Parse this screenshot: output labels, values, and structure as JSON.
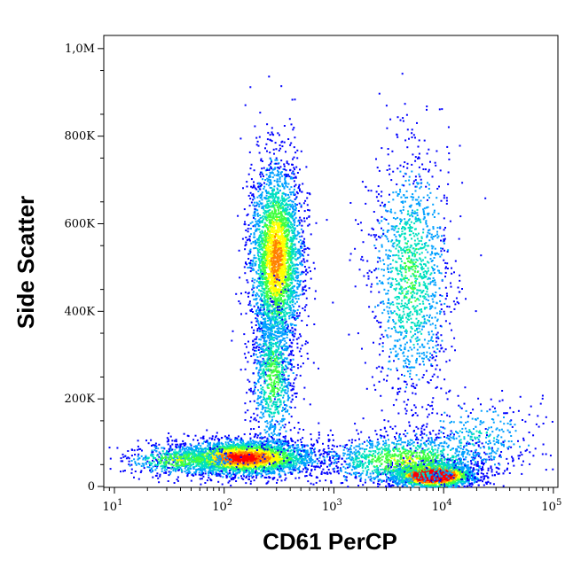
{
  "chart_data": {
    "type": "scatter",
    "plot_style": "density",
    "xlabel": "CD61 PerCP",
    "ylabel": "Side Scatter",
    "x_scale": "log",
    "xlim": [
      8,
      110000
    ],
    "ylim": [
      -2000,
      1030000
    ],
    "x_ticks": [
      {
        "value": 10,
        "base": "10",
        "exp": "1"
      },
      {
        "value": 100,
        "base": "10",
        "exp": "2"
      },
      {
        "value": 1000,
        "base": "10",
        "exp": "3"
      },
      {
        "value": 10000,
        "base": "10",
        "exp": "4"
      },
      {
        "value": 100000,
        "base": "10",
        "exp": "5"
      }
    ],
    "y_ticks": [
      {
        "value": 0,
        "label": "0"
      },
      {
        "value": 200000,
        "label": "200K"
      },
      {
        "value": 400000,
        "label": "400K"
      },
      {
        "value": 600000,
        "label": "600K"
      },
      {
        "value": 800000,
        "label": "800K"
      },
      {
        "value": 1000000,
        "label": "1,0M"
      }
    ],
    "populations": [
      {
        "x_center": 150,
        "x_log_spread": 0.33,
        "y_center": 65000,
        "y_spread": 20000,
        "n": 3200,
        "weight": 1.0
      },
      {
        "x_center": 40,
        "x_log_spread": 0.25,
        "y_center": 60000,
        "y_spread": 18000,
        "n": 500,
        "weight": 0.6
      },
      {
        "x_center": 300,
        "x_log_spread": 0.12,
        "y_center": 520000,
        "y_spread": 110000,
        "n": 3200,
        "weight": 0.8
      },
      {
        "x_center": 280,
        "x_log_spread": 0.1,
        "y_center": 250000,
        "y_spread": 90000,
        "n": 900,
        "weight": 0.5
      },
      {
        "x_center": 5000,
        "x_log_spread": 0.18,
        "y_center": 480000,
        "y_spread": 140000,
        "n": 1400,
        "weight": 0.45
      },
      {
        "x_center": 8000,
        "x_log_spread": 0.18,
        "y_center": 25000,
        "y_spread": 14000,
        "n": 3000,
        "weight": 1.6
      },
      {
        "x_center": 4500,
        "x_log_spread": 0.38,
        "y_center": 60000,
        "y_spread": 30000,
        "n": 1300,
        "weight": 0.6
      },
      {
        "x_center": 20000,
        "x_log_spread": 0.3,
        "y_center": 110000,
        "y_spread": 45000,
        "n": 350,
        "weight": 0.3
      }
    ],
    "colormap": [
      "#0000ff",
      "#00a0ff",
      "#00e0c0",
      "#40ff40",
      "#ffff00",
      "#ff8000",
      "#ff0000"
    ]
  }
}
